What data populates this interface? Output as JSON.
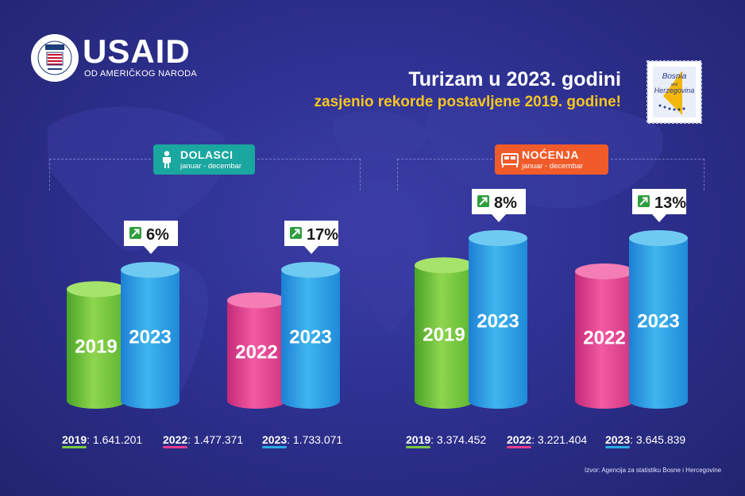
{
  "brand": {
    "name": "USAID",
    "tagline": "OD AMERIČKOG NARODA",
    "seal_text": "UNITED STATES AGENCY INTERNATIONAL DEVELOPMENT"
  },
  "title": {
    "line1": "Turizam u 2023. godini",
    "line2": "zasjenio rekorde postavljene 2019. godine!"
  },
  "stamp": {
    "line1": "Bosnia",
    "line2": "Herzegovina",
    "mid": "and"
  },
  "colors": {
    "green": "#7ac943",
    "blue": "#29abe2",
    "pink": "#e83e8c",
    "teal": "#1aa79f",
    "orange": "#f15a29",
    "yellow": "#f7c520"
  },
  "panels": [
    {
      "title": "DOLASCI",
      "subtitle": "januar - decembar",
      "icon": "person-icon"
    },
    {
      "title": "NOĆENJA",
      "subtitle": "januar - decembar",
      "icon": "bed-icon"
    }
  ],
  "chart_data": [
    {
      "type": "bar",
      "title": "DOLASCI",
      "subtitle": "januar - decembar",
      "groups": [
        {
          "bars": [
            {
              "label": "2019",
              "value": 1641201,
              "color": "green"
            },
            {
              "label": "2023",
              "value": 1733071,
              "color": "blue"
            }
          ],
          "change": "6%"
        },
        {
          "bars": [
            {
              "label": "2022",
              "value": 1477371,
              "color": "pink"
            },
            {
              "label": "2023",
              "value": 1733071,
              "color": "blue"
            }
          ],
          "change": "17%"
        }
      ]
    },
    {
      "type": "bar",
      "title": "NOĆENJA",
      "subtitle": "januar - decembar",
      "groups": [
        {
          "bars": [
            {
              "label": "2019",
              "value": 3374452,
              "color": "green"
            },
            {
              "label": "2023",
              "value": 3645839,
              "color": "blue"
            }
          ],
          "change": "8%"
        },
        {
          "bars": [
            {
              "label": "2022",
              "value": 3221404,
              "color": "pink"
            },
            {
              "label": "2023",
              "value": 3645839,
              "color": "blue"
            }
          ],
          "change": "13%"
        }
      ]
    }
  ],
  "legend": [
    [
      {
        "year": "2019",
        "value": "1.641.201",
        "color": "green"
      },
      {
        "year": "2022",
        "value": "1.477.371",
        "color": "pink"
      },
      {
        "year": "2023",
        "value": "1.733.071",
        "color": "blue"
      }
    ],
    [
      {
        "year": "2019",
        "value": "3.374.452",
        "color": "green"
      },
      {
        "year": "2022",
        "value": "3.221.404",
        "color": "pink"
      },
      {
        "year": "2023",
        "value": "3.645.839",
        "color": "blue"
      }
    ]
  ],
  "source": "Izvor: Agencija za statistiku Bosne i Hercegovine"
}
